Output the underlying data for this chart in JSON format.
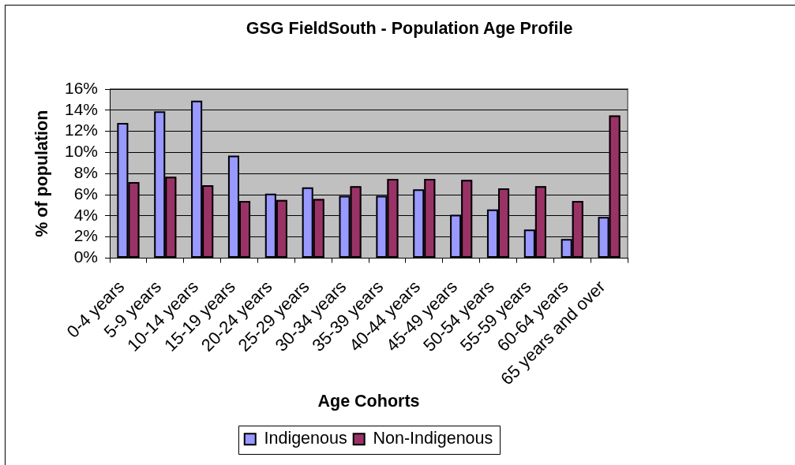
{
  "chart_data": {
    "type": "bar",
    "title": "GSG FieldSouth - Population Age Profile",
    "xlabel": "Age Cohorts",
    "ylabel": "% of population",
    "categories": [
      "0-4 years",
      "5-9 years",
      "10-14 years",
      "15-19 years",
      "20-24 years",
      "25-29 years",
      "30-34 years",
      "35-39 years",
      "40-44 years",
      "45-49 years",
      "50-54 years",
      "55-59 years",
      "60-64 years",
      "65 years and over"
    ],
    "series": [
      {
        "name": "Indigenous",
        "color": "#9999ff",
        "values": [
          12.8,
          13.9,
          14.9,
          9.7,
          6.1,
          6.7,
          5.9,
          5.9,
          6.5,
          4.1,
          4.6,
          2.7,
          1.8,
          3.9
        ]
      },
      {
        "name": "Non-Indigenous",
        "color": "#993366",
        "values": [
          7.2,
          7.7,
          6.9,
          5.4,
          5.5,
          5.6,
          6.8,
          7.5,
          7.5,
          7.4,
          6.6,
          6.8,
          5.4,
          13.5
        ]
      }
    ],
    "ylim": [
      0,
      16
    ],
    "yticks": [
      {
        "value": 0,
        "label": "0%"
      },
      {
        "value": 2,
        "label": "2%"
      },
      {
        "value": 4,
        "label": "4%"
      },
      {
        "value": 6,
        "label": "6%"
      },
      {
        "value": 8,
        "label": "8%"
      },
      {
        "value": 10,
        "label": "10%"
      },
      {
        "value": 12,
        "label": "12%"
      },
      {
        "value": 14,
        "label": "14%"
      },
      {
        "value": 16,
        "label": "16%"
      }
    ],
    "grid": "y",
    "legend": "bottom"
  }
}
